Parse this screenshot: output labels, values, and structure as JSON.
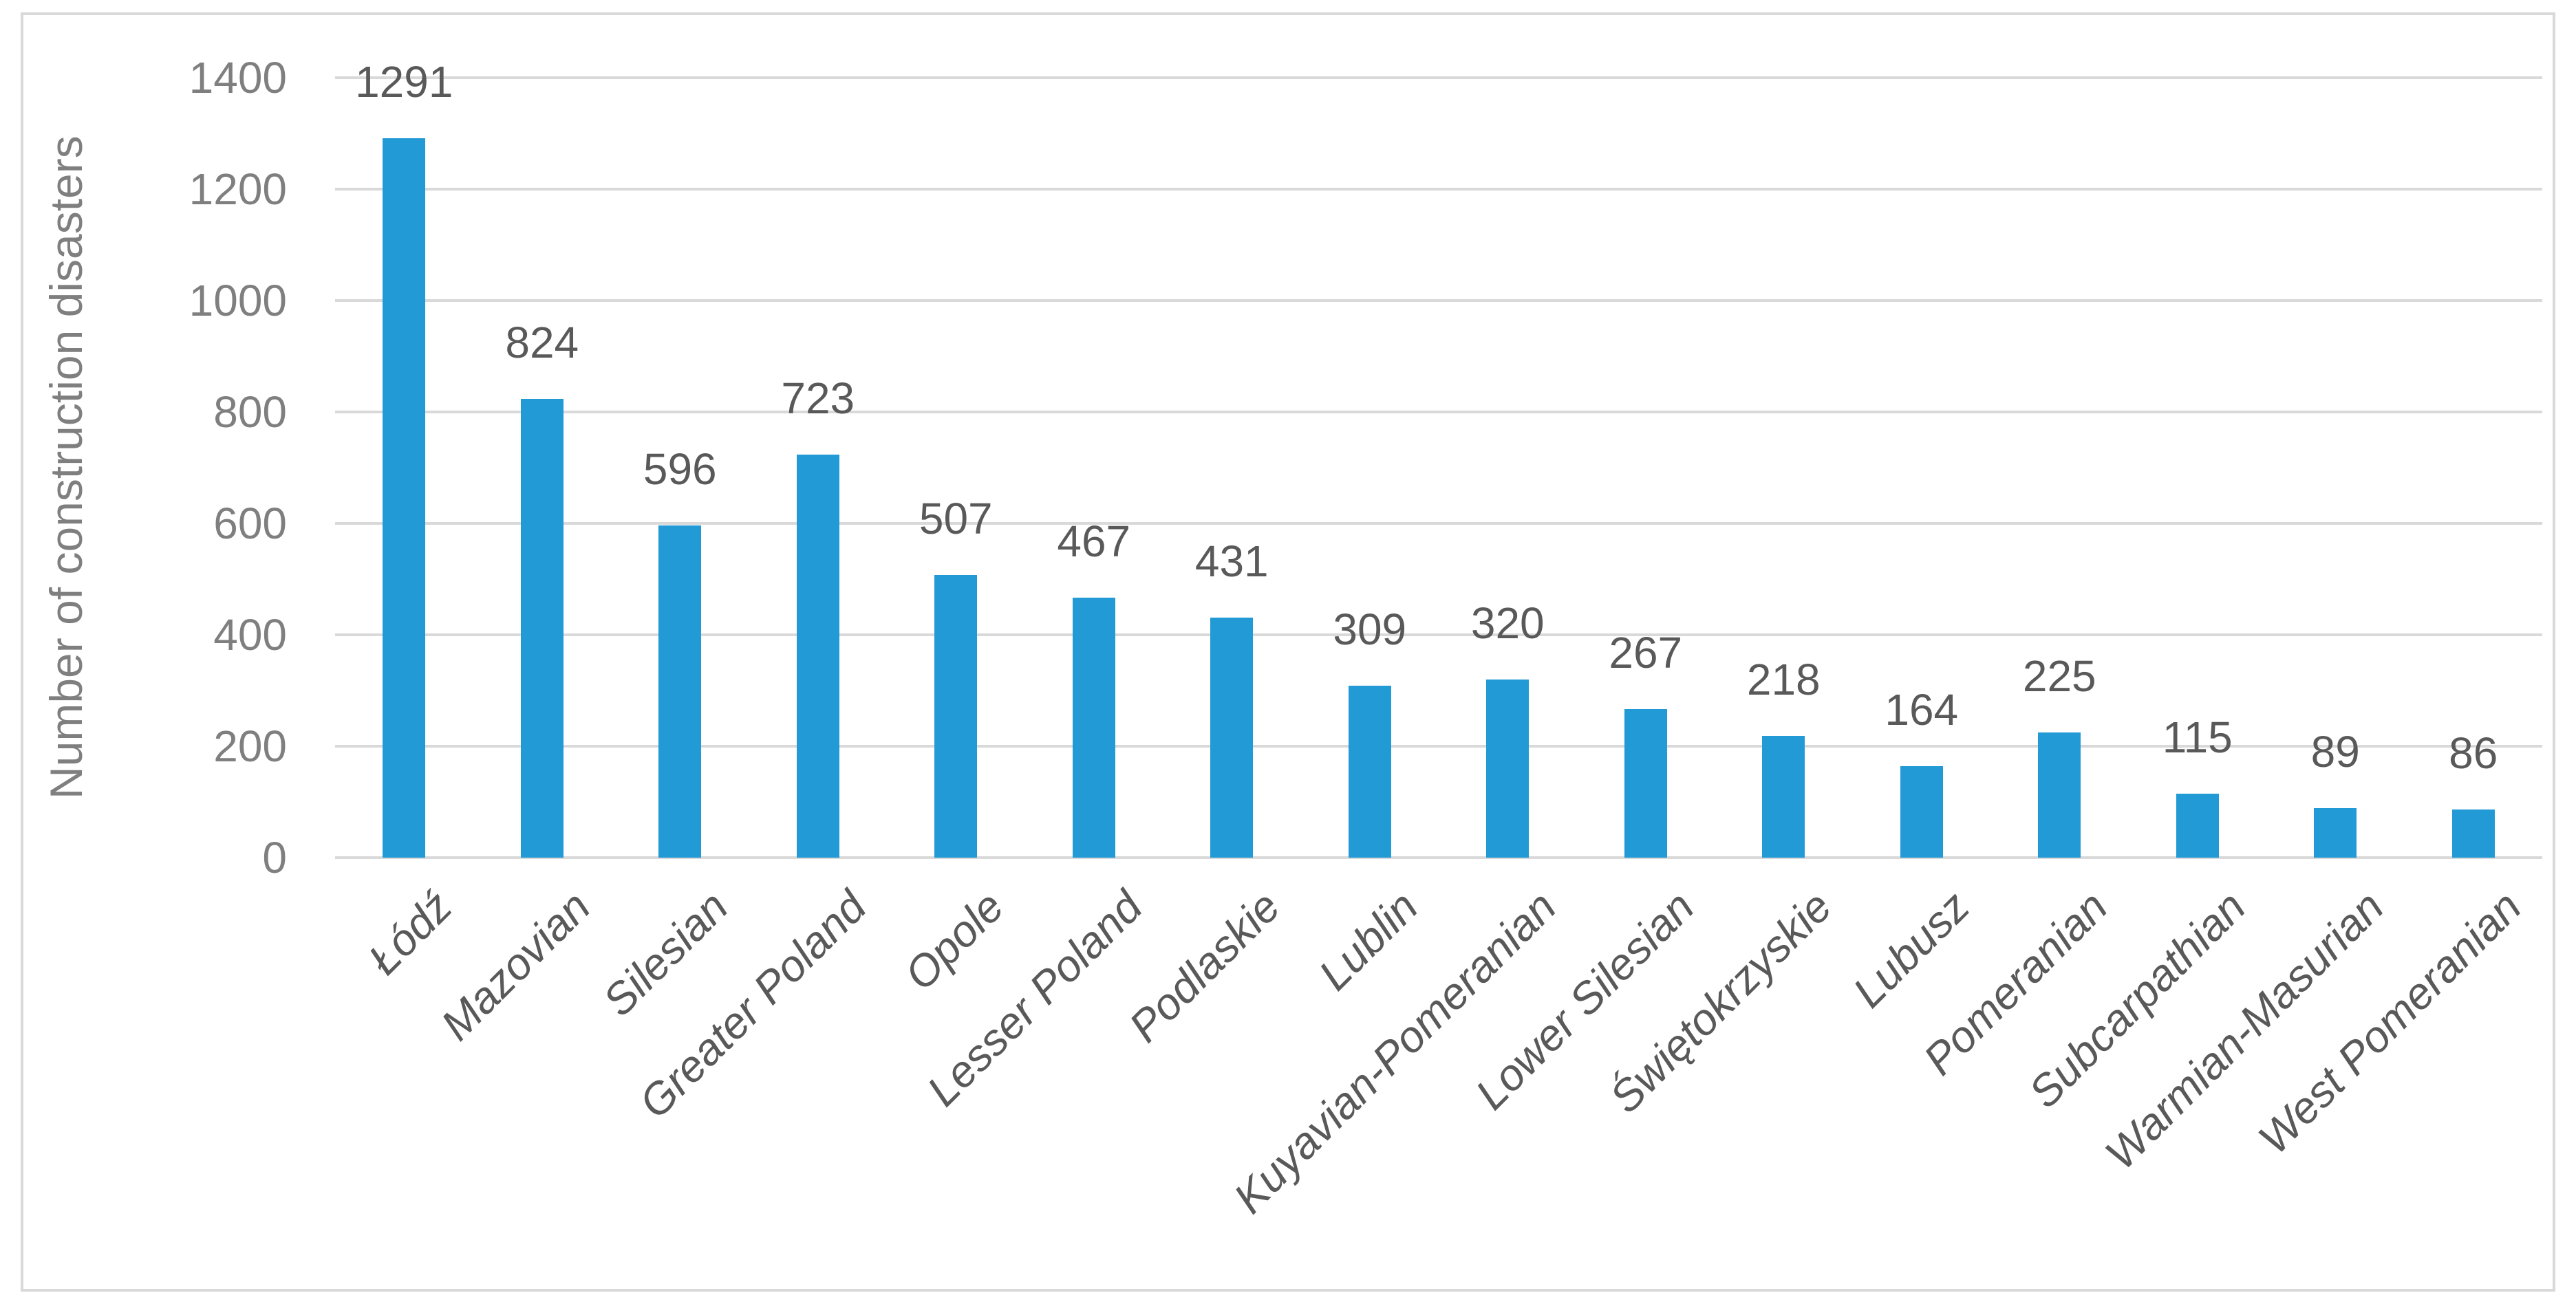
{
  "chart_data": {
    "type": "bar",
    "title": "",
    "ylabel": "Number of construction disasters",
    "xlabel": "",
    "categories": [
      "Łódź",
      "Mazovian",
      "Silesian",
      "Greater Poland",
      "Opole",
      "Lesser Poland",
      "Podlaskie",
      "Lublin",
      "Kuyavian-Pomeranian",
      "Lower Silesian",
      "Świętokrzyskie",
      "Lubusz",
      "Pomeranian",
      "Subcarpathian",
      "Warmian-Masurian",
      "West Pomeranian"
    ],
    "values": [
      1291,
      824,
      596,
      723,
      507,
      467,
      431,
      309,
      320,
      267,
      218,
      164,
      225,
      115,
      89,
      86
    ],
    "ylim": [
      0,
      1400
    ],
    "yticks": [
      0,
      200,
      400,
      600,
      800,
      1000,
      1200,
      1400
    ],
    "grid": "horizontal",
    "legend_position": "none",
    "data_labels": "above bars",
    "bar_color": "#229AD6",
    "value_label_color": "#595959",
    "axis_tick_color": "#7F7F7F",
    "category_label_color": "#595959",
    "gridline_color": "#D9D9D9",
    "border_color": "#D9D9D9"
  }
}
